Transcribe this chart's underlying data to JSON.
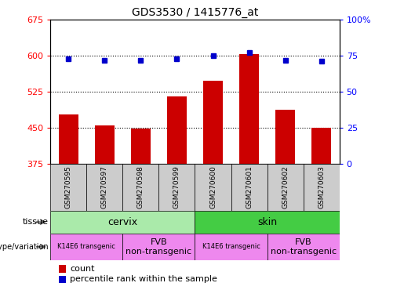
{
  "title": "GDS3530 / 1415776_at",
  "samples": [
    "GSM270595",
    "GSM270597",
    "GSM270598",
    "GSM270599",
    "GSM270600",
    "GSM270601",
    "GSM270602",
    "GSM270603"
  ],
  "count_values": [
    478,
    455,
    448,
    515,
    548,
    603,
    488,
    451
  ],
  "percentile_values": [
    73,
    72,
    72,
    73,
    75,
    77,
    72,
    71
  ],
  "ylim_left": [
    375,
    675
  ],
  "ylim_right": [
    0,
    100
  ],
  "yticks_left": [
    375,
    450,
    525,
    600,
    675
  ],
  "yticks_right": [
    0,
    25,
    50,
    75,
    100
  ],
  "ytick_labels_right": [
    "0",
    "25",
    "50",
    "75",
    "100%"
  ],
  "bar_color": "#cc0000",
  "dot_color": "#0000cc",
  "tissue_cervix_color": "#aaeaaa",
  "tissue_skin_color": "#44cc44",
  "genotype_color": "#ee88ee",
  "xticklabel_bg": "#cccccc",
  "tissue_row": [
    {
      "label": "cervix",
      "start": 0,
      "end": 3
    },
    {
      "label": "skin",
      "start": 4,
      "end": 7
    }
  ],
  "genotype_row": [
    {
      "label": "K14E6 transgenic",
      "start": 0,
      "end": 1,
      "fontsize": 6
    },
    {
      "label": "FVB\nnon-transgenic",
      "start": 2,
      "end": 3,
      "fontsize": 8
    },
    {
      "label": "K14E6 transgenic",
      "start": 4,
      "end": 5,
      "fontsize": 6
    },
    {
      "label": "FVB\nnon-transgenic",
      "start": 6,
      "end": 7,
      "fontsize": 8
    }
  ],
  "legend_items": [
    {
      "color": "#cc0000",
      "label": "count"
    },
    {
      "color": "#0000cc",
      "label": "percentile rank within the sample"
    }
  ],
  "fig_width": 5.15,
  "fig_height": 3.84,
  "dpi": 100
}
